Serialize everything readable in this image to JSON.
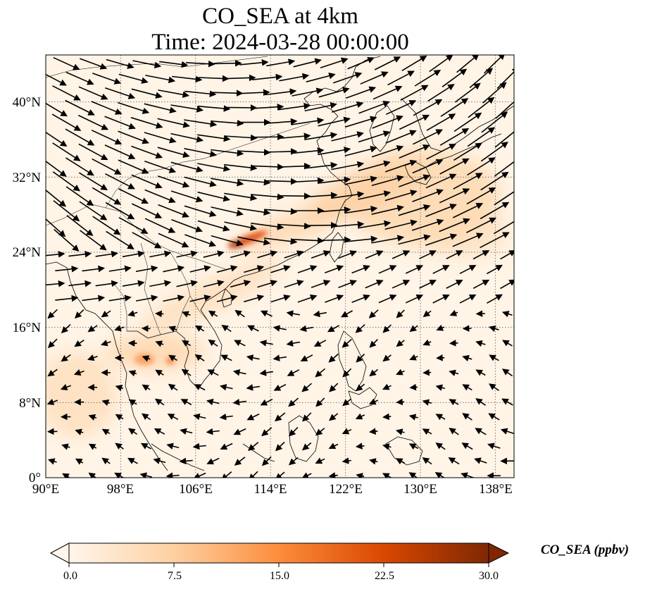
{
  "title": "CO_SEA at 4km",
  "subtitle": "Time: 2024-03-28 00:00:00",
  "map": {
    "lon_range": [
      90,
      140
    ],
    "lat_range": [
      0,
      45
    ],
    "lon_ticks": [
      "90°E",
      "98°E",
      "106°E",
      "114°E",
      "122°E",
      "130°E",
      "138°E"
    ],
    "lat_ticks": [
      "0°",
      "8°N",
      "16°N",
      "24°N",
      "32°N",
      "40°N"
    ],
    "lon_values": [
      90,
      98,
      106,
      114,
      122,
      130,
      138
    ],
    "lat_values": [
      0,
      8,
      16,
      24,
      32,
      40
    ],
    "gridlines": true,
    "field": "CO_SEA",
    "vectors": "wind arrows at 4km"
  },
  "colorbar": {
    "label": "CO_SEA (ppbv)",
    "ticks": [
      "0.0",
      "7.5",
      "15.0",
      "22.5",
      "30.0"
    ],
    "min": 0,
    "max": 30,
    "extend": "both",
    "colors": [
      "#fff5eb",
      "#fdd0a2",
      "#fd8d3c",
      "#d94801",
      "#7f2704"
    ]
  }
}
